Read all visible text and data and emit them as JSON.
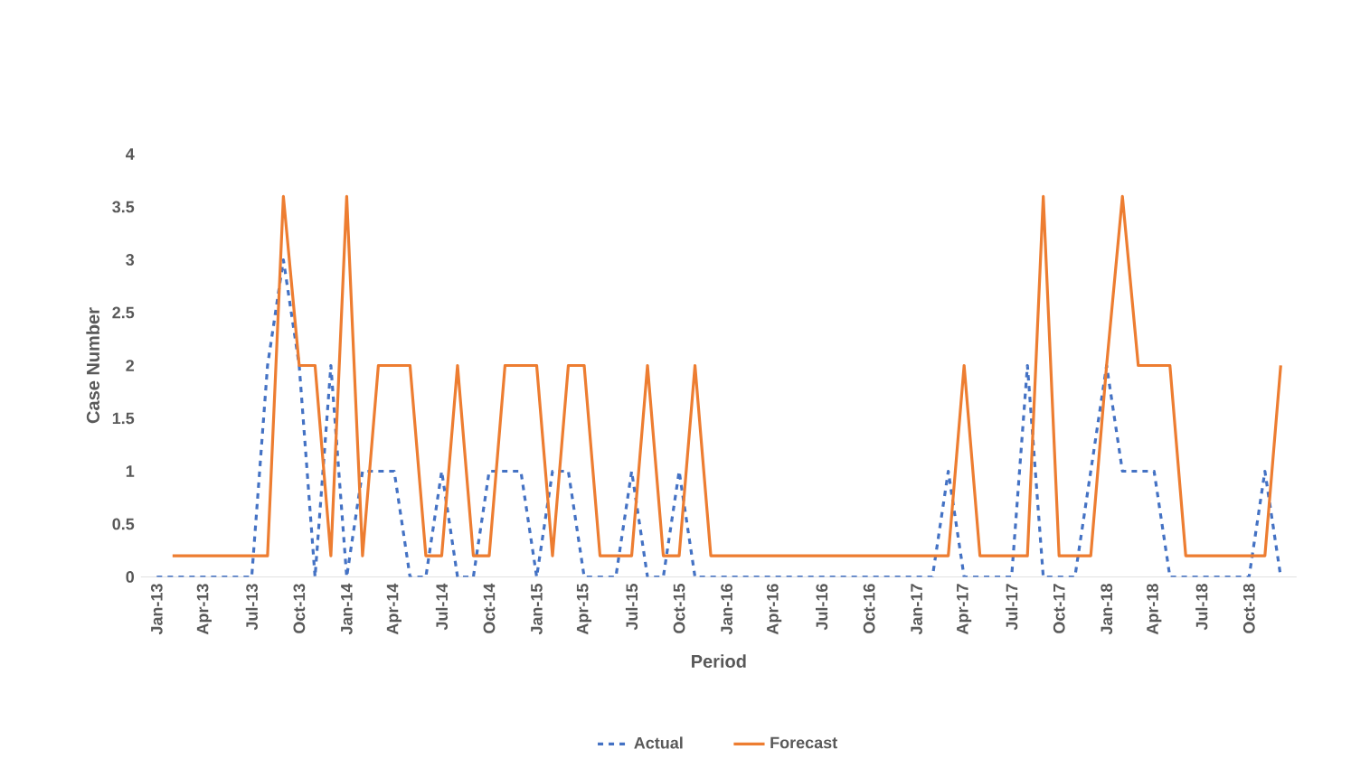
{
  "chart_data": {
    "type": "line",
    "xlabel": "Period",
    "ylabel": "Case Number",
    "categories": [
      "Jan-13",
      null,
      null,
      "Apr-13",
      null,
      null,
      "Jul-13",
      null,
      null,
      "Oct-13",
      null,
      null,
      "Jan-14",
      null,
      null,
      "Apr-14",
      null,
      null,
      "Jul-14",
      null,
      null,
      "Oct-14",
      null,
      null,
      "Jan-15",
      null,
      null,
      "Apr-15",
      null,
      null,
      "Jul-15",
      null,
      null,
      "Oct-15",
      null,
      null,
      "Jan-16",
      null,
      null,
      "Apr-16",
      null,
      null,
      "Jul-16",
      null,
      null,
      "Oct-16",
      null,
      null,
      "Jan-17",
      null,
      null,
      "Apr-17",
      null,
      null,
      "Jul-17",
      null,
      null,
      "Oct-17",
      null,
      null,
      "Jan-18",
      null,
      null,
      "Apr-18",
      null,
      null,
      "Jul-18",
      null,
      null,
      "Oct-18",
      null,
      null
    ],
    "series": [
      {
        "name": "Actual",
        "color": "#4472c4",
        "line_style": "dashed",
        "values": [
          0,
          0,
          0,
          0,
          0,
          0,
          0,
          2,
          3,
          2,
          0,
          2,
          0,
          1,
          1,
          1,
          0,
          0,
          1,
          0,
          0,
          1,
          1,
          1,
          0,
          1,
          1,
          0,
          0,
          0,
          1,
          0,
          0,
          1,
          0,
          0,
          0,
          0,
          0,
          0,
          0,
          0,
          0,
          0,
          0,
          0,
          0,
          0,
          0,
          0,
          1,
          0,
          0,
          0,
          0,
          2,
          0,
          0,
          0,
          1,
          2,
          1,
          1,
          1,
          0,
          0,
          0,
          0,
          0,
          0,
          1,
          0
        ]
      },
      {
        "name": "Forecast",
        "color": "#ed7d31",
        "line_style": "solid",
        "values": [
          null,
          0.2,
          0.2,
          0.2,
          0.2,
          0.2,
          0.2,
          0.2,
          3.6,
          2,
          2,
          0.2,
          3.6,
          0.2,
          2,
          2,
          2,
          0.2,
          0.2,
          2,
          0.2,
          0.2,
          2,
          2,
          2,
          0.2,
          2,
          2,
          0.2,
          0.2,
          0.2,
          2,
          0.2,
          0.2,
          2,
          0.2,
          0.2,
          0.2,
          0.2,
          0.2,
          0.2,
          0.2,
          0.2,
          0.2,
          0.2,
          0.2,
          0.2,
          0.2,
          0.2,
          0.2,
          0.2,
          2,
          0.2,
          0.2,
          0.2,
          0.2,
          3.6,
          0.2,
          0.2,
          0.2,
          2,
          3.6,
          2,
          2,
          2,
          0.2,
          0.2,
          0.2,
          0.2,
          0.2,
          0.2,
          2
        ]
      }
    ],
    "ylim": [
      0,
      4
    ],
    "yticks": [
      0,
      0.5,
      1,
      1.5,
      2,
      2.5,
      3,
      3.5,
      4
    ],
    "grid": false,
    "legend": "bottom",
    "marker": "none"
  }
}
